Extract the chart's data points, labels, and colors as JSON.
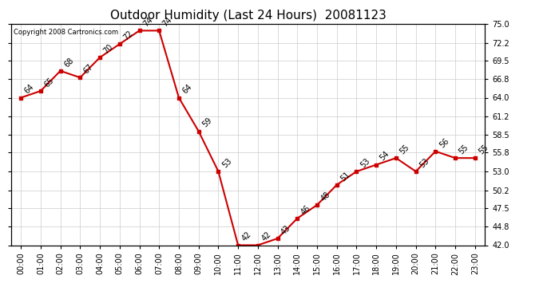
{
  "title": "Outdoor Humidity (Last 24 Hours)  20081123",
  "copyright": "Copyright 2008 Cartronics.com",
  "hours": [
    "00:00",
    "01:00",
    "02:00",
    "03:00",
    "04:00",
    "05:00",
    "06:00",
    "07:00",
    "08:00",
    "09:00",
    "10:00",
    "11:00",
    "12:00",
    "13:00",
    "14:00",
    "15:00",
    "16:00",
    "17:00",
    "18:00",
    "19:00",
    "20:00",
    "21:00",
    "22:00",
    "23:00"
  ],
  "values": [
    64,
    65,
    68,
    67,
    70,
    72,
    74,
    74,
    64,
    59,
    53,
    42,
    42,
    43,
    46,
    48,
    51,
    53,
    54,
    55,
    53,
    56,
    55,
    55
  ],
  "ylim_min": 42.0,
  "ylim_max": 75.0,
  "yticks": [
    42.0,
    44.8,
    47.5,
    50.2,
    53.0,
    55.8,
    58.5,
    61.2,
    64.0,
    66.8,
    69.5,
    72.2,
    75.0
  ],
  "line_color": "#cc0000",
  "marker_color": "#cc0000",
  "background_color": "#ffffff",
  "grid_color": "#cccccc",
  "title_fontsize": 11,
  "label_fontsize": 7,
  "tick_fontsize": 7,
  "copyright_fontsize": 6
}
